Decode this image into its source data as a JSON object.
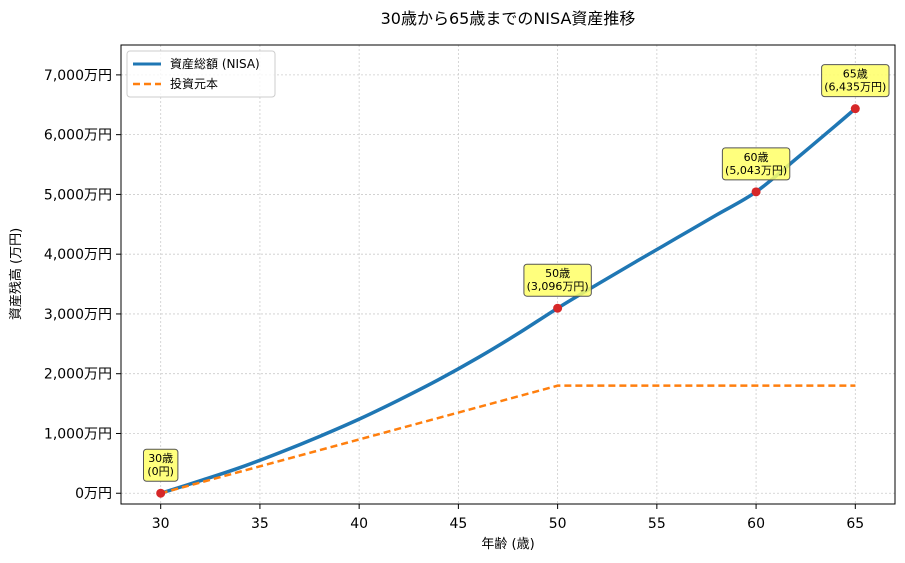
{
  "chart_data": {
    "type": "line",
    "title": "30歳から65歳までのNISA資産推移",
    "xlabel": "年齢 (歳)",
    "ylabel": "資産残高 (万円)",
    "xlim": [
      28,
      67
    ],
    "ylim": [
      -180,
      7500
    ],
    "xticks": [
      30,
      35,
      40,
      45,
      50,
      55,
      60,
      65
    ],
    "yticks": [
      0,
      1000,
      2000,
      3000,
      4000,
      5000,
      6000,
      7000
    ],
    "ytick_labels": [
      "0万円",
      "1,000万円",
      "2,000万円",
      "3,000万円",
      "4,000万円",
      "5,000万円",
      "6,000万円",
      "7,000万円"
    ],
    "grid": true,
    "legend_position": "top-left",
    "series": [
      {
        "name": "資産総額 (NISA)",
        "color": "#1f77b4",
        "style": "solid",
        "x": [
          30,
          32,
          34,
          36,
          38,
          40,
          42,
          44,
          46,
          48,
          50,
          52,
          54,
          56,
          58,
          60,
          62,
          64,
          65
        ],
        "y": [
          0,
          210,
          430,
          680,
          950,
          1240,
          1560,
          1900,
          2270,
          2670,
          3096,
          3495,
          3885,
          4270,
          4655,
          5043,
          5590,
          6150,
          6435
        ]
      },
      {
        "name": "投資元本",
        "color": "#ff7f0e",
        "style": "dashed",
        "x": [
          30,
          50,
          65
        ],
        "y": [
          0,
          1800,
          1800
        ]
      }
    ],
    "markers": {
      "color": "#d62728",
      "points": [
        {
          "x": 30,
          "y": 0,
          "label_line1": "30歳",
          "label_line2": "(0円)"
        },
        {
          "x": 50,
          "y": 3096,
          "label_line1": "50歳",
          "label_line2": "(3,096万円)"
        },
        {
          "x": 60,
          "y": 5043,
          "label_line1": "60歳",
          "label_line2": "(5,043万円)"
        },
        {
          "x": 65,
          "y": 6435,
          "label_line1": "65歳",
          "label_line2": "(6,435万円)"
        }
      ]
    }
  }
}
